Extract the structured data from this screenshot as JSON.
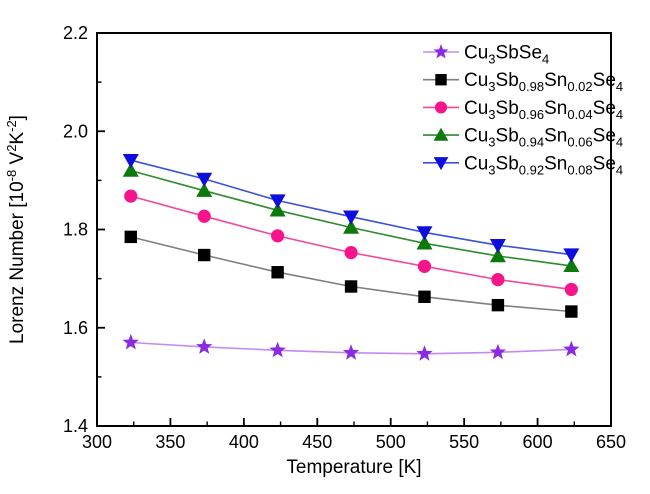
{
  "chart_data": {
    "type": "line",
    "title": "",
    "xlabel": "Temperature [K]",
    "ylabel": "Lorenz Number [10-8 V2K-2]",
    "ylabel_segments": [
      {
        "t": "Lorenz Number [10",
        "s": "n"
      },
      {
        "t": "-8",
        "s": "sup"
      },
      {
        "t": " V",
        "s": "n"
      },
      {
        "t": "2",
        "s": "sup"
      },
      {
        "t": "K",
        "s": "n"
      },
      {
        "t": "-2",
        "s": "sup"
      },
      {
        "t": "]",
        "s": "n"
      }
    ],
    "grid": false,
    "legend_position": "top-right",
    "background_color": "#ffffff",
    "axis_color": "#000000",
    "axes": {
      "x": {
        "label": "Temperature [K]",
        "min": 300,
        "max": 650,
        "major_ticks": [
          300,
          350,
          400,
          450,
          500,
          550,
          600,
          650
        ],
        "major_tick_labels": [
          "300",
          "350",
          "400",
          "450",
          "500",
          "550",
          "600",
          "650"
        ],
        "minor_ticks": [
          325,
          375,
          425,
          475,
          525,
          575,
          625
        ]
      },
      "y": {
        "min": 1.4,
        "max": 2.2,
        "major_ticks": [
          1.4,
          1.6,
          1.8,
          2.0,
          2.2
        ],
        "major_tick_labels": [
          "1.4",
          "1.6",
          "1.8",
          "2.0",
          "2.2"
        ],
        "minor_ticks": [
          1.5,
          1.7,
          1.9,
          2.1
        ]
      }
    },
    "x": [
      323,
      373,
      423,
      473,
      523,
      573,
      623
    ],
    "series": [
      {
        "id": "cu3sbse4",
        "label": "Cu3SbSe4",
        "label_segments": [
          {
            "t": "Cu",
            "s": "n"
          },
          {
            "t": "3",
            "s": "sub"
          },
          {
            "t": "SbSe",
            "s": "n"
          },
          {
            "t": "4",
            "s": "sub"
          }
        ],
        "marker": "star",
        "marker_color": "#8A2BE2",
        "line_color": "#C38BEF",
        "values": [
          1.57,
          1.561,
          1.554,
          1.549,
          1.547,
          1.55,
          1.556
        ]
      },
      {
        "id": "sn-0-02",
        "label": "Cu3Sb0.98Sn0.02Se4",
        "label_segments": [
          {
            "t": "Cu",
            "s": "n"
          },
          {
            "t": "3",
            "s": "sub"
          },
          {
            "t": "Sb",
            "s": "n"
          },
          {
            "t": "0.98",
            "s": "sub"
          },
          {
            "t": "Sn",
            "s": "n"
          },
          {
            "t": "0.02",
            "s": "sub"
          },
          {
            "t": "Se",
            "s": "n"
          },
          {
            "t": "4",
            "s": "sub"
          }
        ],
        "marker": "square",
        "marker_color": "#000000",
        "line_color": "#7F7F7F",
        "values": [
          1.785,
          1.748,
          1.713,
          1.684,
          1.663,
          1.646,
          1.633
        ]
      },
      {
        "id": "sn-0-04",
        "label": "Cu3Sb0.96Sn0.04Se4",
        "label_segments": [
          {
            "t": "Cu",
            "s": "n"
          },
          {
            "t": "3",
            "s": "sub"
          },
          {
            "t": "Sb",
            "s": "n"
          },
          {
            "t": "0.96",
            "s": "sub"
          },
          {
            "t": "Sn",
            "s": "n"
          },
          {
            "t": "0.04",
            "s": "sub"
          },
          {
            "t": "Se",
            "s": "n"
          },
          {
            "t": "4",
            "s": "sub"
          }
        ],
        "marker": "circle",
        "marker_color": "#F5148C",
        "line_color": "#F4479B",
        "values": [
          1.868,
          1.827,
          1.787,
          1.753,
          1.725,
          1.698,
          1.678
        ]
      },
      {
        "id": "sn-0-06",
        "label": "Cu3Sb0.94Sn0.06Se4",
        "label_segments": [
          {
            "t": "Cu",
            "s": "n"
          },
          {
            "t": "3",
            "s": "sub"
          },
          {
            "t": "Sb",
            "s": "n"
          },
          {
            "t": "0.94",
            "s": "sub"
          },
          {
            "t": "Sn",
            "s": "n"
          },
          {
            "t": "0.06",
            "s": "sub"
          },
          {
            "t": "Se",
            "s": "n"
          },
          {
            "t": "4",
            "s": "sub"
          }
        ],
        "marker": "triangle-up",
        "marker_color": "#0B7A0B",
        "line_color": "#2E8B2E",
        "values": [
          1.92,
          1.879,
          1.839,
          1.804,
          1.772,
          1.746,
          1.726
        ]
      },
      {
        "id": "sn-0-08",
        "label": "Cu3Sb0.92Sn0.08Se4",
        "label_segments": [
          {
            "t": "Cu",
            "s": "n"
          },
          {
            "t": "3",
            "s": "sub"
          },
          {
            "t": "Sb",
            "s": "n"
          },
          {
            "t": "0.92",
            "s": "sub"
          },
          {
            "t": "Sn",
            "s": "n"
          },
          {
            "t": "0.08",
            "s": "sub"
          },
          {
            "t": "Se",
            "s": "n"
          },
          {
            "t": "4",
            "s": "sub"
          }
        ],
        "marker": "triangle-down",
        "marker_color": "#0E0EDC",
        "line_color": "#3A4FE0",
        "values": [
          1.941,
          1.903,
          1.859,
          1.826,
          1.794,
          1.768,
          1.749
        ]
      }
    ]
  }
}
